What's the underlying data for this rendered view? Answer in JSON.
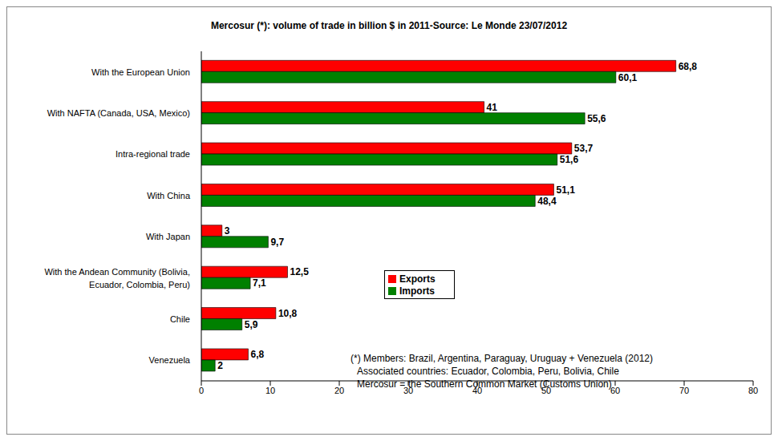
{
  "chart_data": {
    "type": "bar",
    "title": "Mercosur (*): volume of trade in billion $ in 2011-Source: Le Monde 23/07/2012",
    "orientation": "horizontal",
    "categories": [
      "With the European Union",
      "With NAFTA (Canada, USA, Mexico)",
      "Intra-regional trade",
      "With China",
      "With Japan",
      "With the Andean Community (Bolivia, Ecuador, Colombia, Peru)",
      "Chile",
      "Venezuela"
    ],
    "series": [
      {
        "name": "Exports",
        "color": "#ff0000",
        "values": [
          68.8,
          41,
          53.7,
          51.1,
          3,
          12.5,
          10.8,
          6.8
        ],
        "value_labels": [
          "68,8",
          "41",
          "53,7",
          "51,1",
          "3",
          "12,5",
          "10,8",
          "6,8"
        ]
      },
      {
        "name": "Imports",
        "color": "#008000",
        "values": [
          60.1,
          55.6,
          51.6,
          48.4,
          9.7,
          7.1,
          5.9,
          2
        ],
        "value_labels": [
          "60,1",
          "55,6",
          "51,6",
          "48,4",
          "9,7",
          "7,1",
          "5,9",
          "2"
        ]
      }
    ],
    "xlim": [
      0,
      80
    ],
    "xticks": [
      0,
      10,
      20,
      30,
      40,
      50,
      60,
      70,
      80
    ],
    "grid": false,
    "legend": "center",
    "data_labels": true,
    "annotations": [
      "(*) Members: Brazil, Argentina, Paraguay, Uruguay + Venezuela (2012)",
      "Associated countries: Ecuador, Colombia, Peru, Bolivia, Chile",
      "Mercosur = the Southern Common Market (Customs Union)"
    ]
  }
}
